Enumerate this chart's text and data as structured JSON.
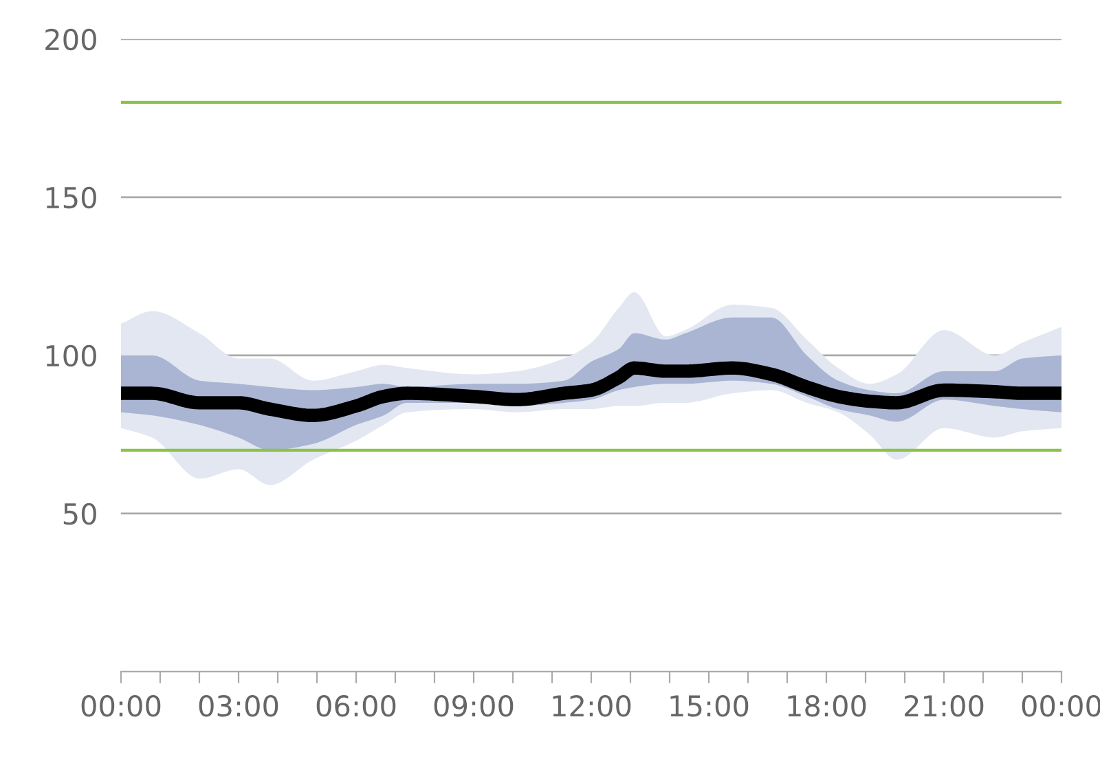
{
  "chart_data": {
    "type": "line",
    "xlim": [
      0,
      24
    ],
    "ylim": [
      0,
      200
    ],
    "xticks": [
      {
        "value": 0,
        "label": "00:00"
      },
      {
        "value": 1,
        "label": null
      },
      {
        "value": 2,
        "label": null
      },
      {
        "value": 3,
        "label": "03:00"
      },
      {
        "value": 4,
        "label": null
      },
      {
        "value": 5,
        "label": null
      },
      {
        "value": 6,
        "label": "06:00"
      },
      {
        "value": 7,
        "label": null
      },
      {
        "value": 8,
        "label": null
      },
      {
        "value": 9,
        "label": "09:00"
      },
      {
        "value": 10,
        "label": null
      },
      {
        "value": 11,
        "label": null
      },
      {
        "value": 12,
        "label": "12:00"
      },
      {
        "value": 13,
        "label": null
      },
      {
        "value": 14,
        "label": null
      },
      {
        "value": 15,
        "label": "15:00"
      },
      {
        "value": 16,
        "label": null
      },
      {
        "value": 17,
        "label": null
      },
      {
        "value": 18,
        "label": "18:00"
      },
      {
        "value": 19,
        "label": null
      },
      {
        "value": 20,
        "label": null
      },
      {
        "value": 21,
        "label": "21:00"
      },
      {
        "value": 22,
        "label": null
      },
      {
        "value": 23,
        "label": null
      },
      {
        "value": 24,
        "label": "00:00"
      }
    ],
    "yticks": [
      50,
      100,
      150,
      200
    ],
    "grid": "y",
    "x": [
      0,
      0.8,
      2,
      3,
      3.8,
      4.9,
      6,
      6.7,
      7.3,
      9,
      10.1,
      11.3,
      12,
      12.7,
      13.1,
      13.9,
      14.4,
      15.6,
      16.6,
      17.5,
      18.3,
      19.1,
      19.8,
      21,
      22.3,
      23,
      24
    ],
    "series": [
      {
        "color": "#e3e7f1",
        "values": [
          null,
          null,
          null,
          null,
          null,
          null,
          null,
          null,
          null,
          null,
          null,
          null,
          null,
          null,
          null,
          null,
          null,
          null,
          null,
          null,
          null,
          null,
          null,
          null,
          null,
          null,
          null
        ],
        "upper": [
          110,
          114,
          107,
          99,
          99,
          92,
          95,
          97,
          96,
          94,
          95,
          99,
          104,
          115,
          120,
          106,
          108,
          116,
          115,
          105,
          96,
          91,
          94,
          108,
          100,
          104,
          109
        ],
        "lower": [
          77,
          74,
          61,
          64,
          59,
          67,
          73,
          78,
          82,
          83,
          82,
          83,
          83,
          84,
          84,
          85,
          85,
          88,
          89,
          85,
          82,
          75,
          67,
          77,
          74,
          76,
          77
        ]
      },
      {
        "color": "#000000",
        "values": [
          88,
          88,
          85,
          85,
          83,
          81,
          84,
          87,
          88,
          87,
          86,
          88,
          89,
          93,
          96,
          95,
          95,
          96,
          94,
          90,
          87,
          85.5,
          85,
          89,
          88.5,
          88,
          88
        ],
        "upper": [
          100,
          100,
          92,
          91,
          90,
          89,
          90,
          91,
          90,
          91,
          91,
          92,
          98,
          102,
          107,
          105,
          107,
          112,
          112,
          100,
          92,
          89,
          88,
          95,
          95,
          99,
          100
        ],
        "lower": [
          82,
          81,
          78,
          74,
          70,
          72,
          78,
          81,
          85,
          85,
          84,
          85,
          86,
          89,
          90,
          91,
          91,
          92,
          91,
          87,
          83,
          81,
          79,
          86,
          84,
          83,
          82
        ]
      }
    ],
    "ref_lines": [
      {
        "axis": "y",
        "value": 180,
        "color": "#8bc34a"
      },
      {
        "axis": "y",
        "value": 70,
        "color": "#8bc34a"
      }
    ]
  }
}
